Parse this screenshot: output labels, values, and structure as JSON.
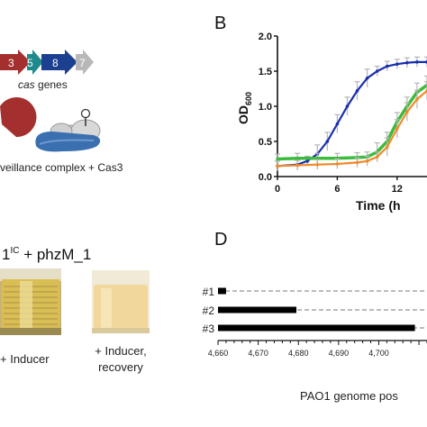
{
  "panel_a": {
    "genes": [
      "3",
      "5",
      "8",
      "7"
    ],
    "cas_label_italic": "cas",
    "cas_label_rest": " genes",
    "complex_label": "veillance complex + Cas3"
  },
  "panel_b": {
    "letter": "B",
    "ylabel_main": "OD",
    "ylabel_sub": "600",
    "xlabel": "Time (h",
    "series_colors": [
      "#1a2fae",
      "#3cbc3c",
      "#f08a2a"
    ]
  },
  "panel_c": {
    "title_prefix": "1",
    "title_sup": "IC",
    "title_rest": " + phzM_1",
    "tube1_label": "+ Inducer",
    "tube2_label_line1": "+ Inducer,",
    "tube2_label_line2": "recovery"
  },
  "panel_d": {
    "letter": "D",
    "rows": [
      {
        "label": "#1",
        "start": 4660,
        "end": 4662
      },
      {
        "label": "#2",
        "start": 4660,
        "end": 4679.5
      },
      {
        "label": "#3",
        "start": 4660,
        "end": 4709
      }
    ],
    "xlabel": "PAO1 genome pos"
  },
  "chart_data": {
    "type": "line",
    "xlabel": "Time (h",
    "ylabel": "OD600",
    "xlim": [
      0,
      15
    ],
    "ylim": [
      0,
      2.0
    ],
    "xticks": [
      "0",
      "6",
      "12"
    ],
    "yticks": [
      "0.0",
      "0.5",
      "1.0",
      "1.5",
      "2.0"
    ],
    "series": [
      {
        "x": [
          0,
          2,
          3,
          4,
          5,
          6,
          7,
          8,
          9,
          10,
          11,
          12,
          13,
          14,
          15
        ],
        "y": [
          0.15,
          0.17,
          0.22,
          0.32,
          0.5,
          0.75,
          1.0,
          1.22,
          1.4,
          1.5,
          1.57,
          1.6,
          1.62,
          1.63,
          1.63
        ]
      },
      {
        "x": [
          0,
          2,
          4,
          6,
          8,
          9,
          10,
          11,
          12,
          13,
          14,
          15
        ],
        "y": [
          0.25,
          0.26,
          0.26,
          0.26,
          0.27,
          0.28,
          0.35,
          0.5,
          0.78,
          1.0,
          1.2,
          1.3
        ]
      },
      {
        "x": [
          0,
          2,
          4,
          6,
          8,
          9,
          10,
          11,
          12,
          13,
          14,
          15
        ],
        "y": [
          0.15,
          0.16,
          0.17,
          0.18,
          0.2,
          0.22,
          0.28,
          0.42,
          0.68,
          0.92,
          1.1,
          1.22
        ]
      }
    ]
  }
}
